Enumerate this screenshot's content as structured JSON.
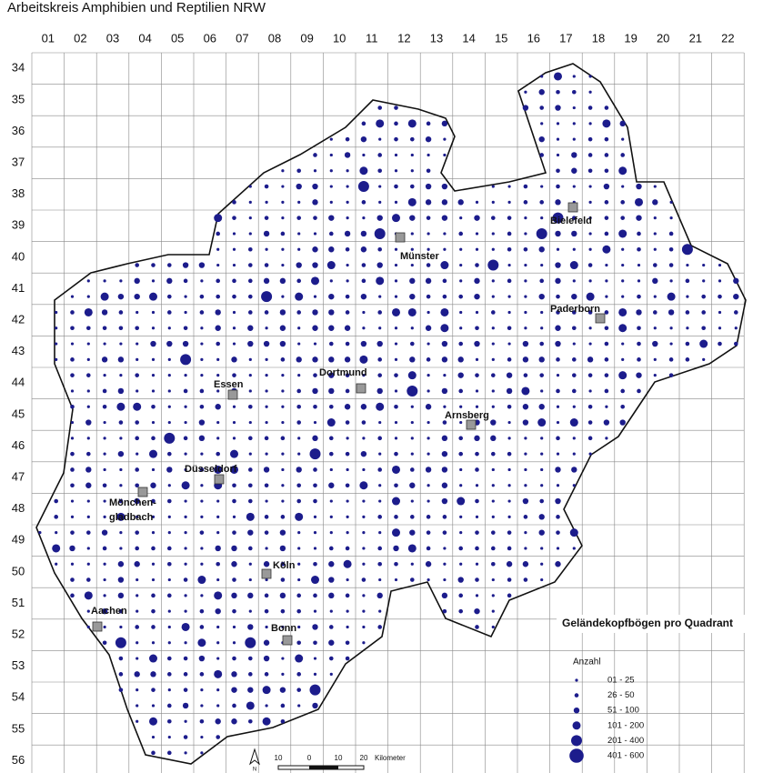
{
  "title": "Arbeitskreis Amphibien und Reptilien NRW",
  "columns": [
    "01",
    "02",
    "03",
    "04",
    "05",
    "06",
    "07",
    "08",
    "09",
    "10",
    "11",
    "12",
    "13",
    "14",
    "15",
    "16",
    "17",
    "18",
    "19",
    "20",
    "21",
    "22"
  ],
  "rows": [
    "34",
    "35",
    "36",
    "37",
    "38",
    "39",
    "40",
    "41",
    "42",
    "43",
    "44",
    "45",
    "46",
    "47",
    "48",
    "49",
    "50",
    "51",
    "52",
    "53",
    "54",
    "55",
    "56"
  ],
  "cities": [
    {
      "name": [
        "Bielefeld"
      ]
    },
    {
      "name": [
        "Münster"
      ]
    },
    {
      "name": [
        "Paderborn"
      ]
    },
    {
      "name": [
        "Dortmund"
      ]
    },
    {
      "name": [
        "Essen"
      ]
    },
    {
      "name": [
        "Arnsberg"
      ]
    },
    {
      "name": [
        "Düsseldorf"
      ]
    },
    {
      "name": [
        "Mönchen-",
        "gladbach"
      ]
    },
    {
      "name": [
        "Köln"
      ]
    },
    {
      "name": [
        "Aachen"
      ]
    },
    {
      "name": [
        "Bonn"
      ]
    }
  ],
  "legend": {
    "title": "Geländekopfbögen pro Quadrant",
    "subtitle": "Anzahl",
    "items": [
      "01 - 25",
      "26 - 50",
      "51 - 100",
      "101 - 200",
      "201 - 400",
      "401 - 600"
    ]
  },
  "scale": {
    "labels": [
      "10",
      "0",
      "10",
      "20",
      "Kilometer"
    ],
    "north": "N"
  }
}
